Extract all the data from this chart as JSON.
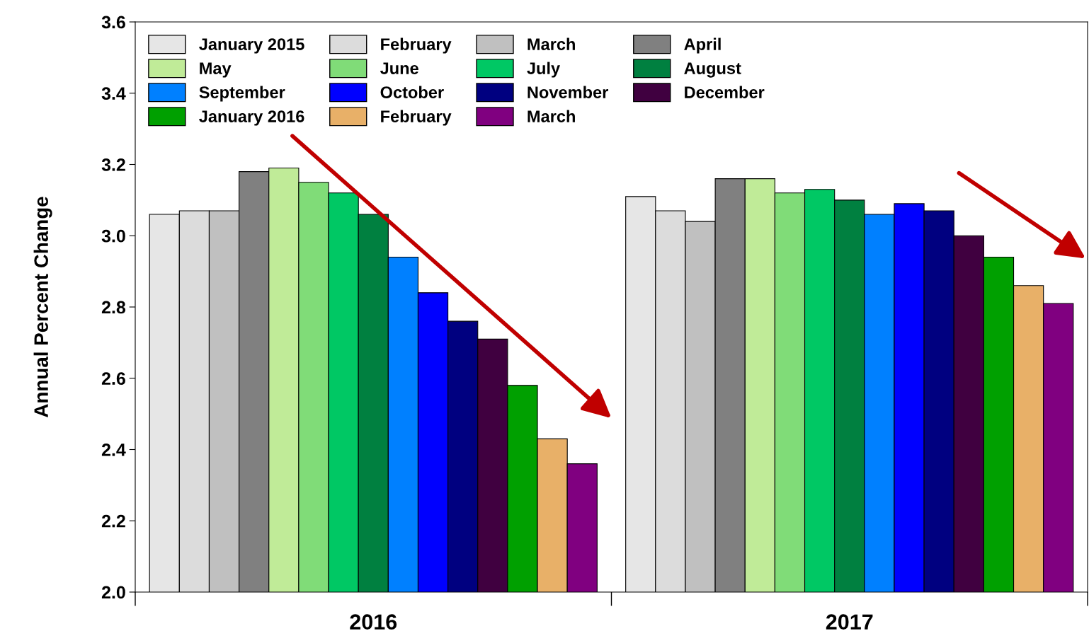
{
  "chart_data": {
    "type": "bar",
    "ylabel": "Annual Percent Change",
    "categories": [
      "2016",
      "2017"
    ],
    "ylim": [
      2.0,
      3.6
    ],
    "yticks": [
      {
        "value": 2.0,
        "label": "2.0"
      },
      {
        "value": 2.2,
        "label": "2.2"
      },
      {
        "value": 2.4,
        "label": "2.4"
      },
      {
        "value": 2.6,
        "label": "2.6"
      },
      {
        "value": 2.8,
        "label": "2.8"
      },
      {
        "value": 3.0,
        "label": "3.0"
      },
      {
        "value": 3.2,
        "label": "3.2"
      },
      {
        "value": 3.4,
        "label": "3.4"
      },
      {
        "value": 3.6,
        "label": "3.6"
      }
    ],
    "grid": false,
    "legend": "top left",
    "series": [
      {
        "name": "January 2015",
        "color": "#e6e6e6",
        "values": [
          3.06,
          3.11
        ]
      },
      {
        "name": "February",
        "color": "#dcdcdc",
        "values": [
          3.07,
          3.07
        ]
      },
      {
        "name": "March",
        "color": "#c0c0c0",
        "values": [
          3.07,
          3.04
        ]
      },
      {
        "name": "April",
        "color": "#808080",
        "values": [
          3.18,
          3.16
        ]
      },
      {
        "name": "May",
        "color": "#c0eb98",
        "values": [
          3.19,
          3.16
        ]
      },
      {
        "name": "June",
        "color": "#80dc78",
        "values": [
          3.15,
          3.12
        ]
      },
      {
        "name": "July",
        "color": "#00c864",
        "values": [
          3.12,
          3.13
        ]
      },
      {
        "name": "August",
        "color": "#008040",
        "values": [
          3.06,
          3.1
        ]
      },
      {
        "name": "September",
        "color": "#0080ff",
        "values": [
          2.94,
          3.06
        ]
      },
      {
        "name": "October",
        "color": "#0000ff",
        "values": [
          2.84,
          3.09
        ]
      },
      {
        "name": "November",
        "color": "#000080",
        "values": [
          2.76,
          3.07
        ]
      },
      {
        "name": "December",
        "color": "#400040",
        "values": [
          2.71,
          3.0
        ]
      },
      {
        "name": "January 2016",
        "color": "#00a000",
        "values": [
          2.58,
          2.94
        ]
      },
      {
        "name": "February",
        "color": "#e8b068",
        "values": [
          2.43,
          2.86
        ]
      },
      {
        "name": "March",
        "color": "#800080",
        "values": [
          2.36,
          2.81
        ]
      }
    ]
  }
}
